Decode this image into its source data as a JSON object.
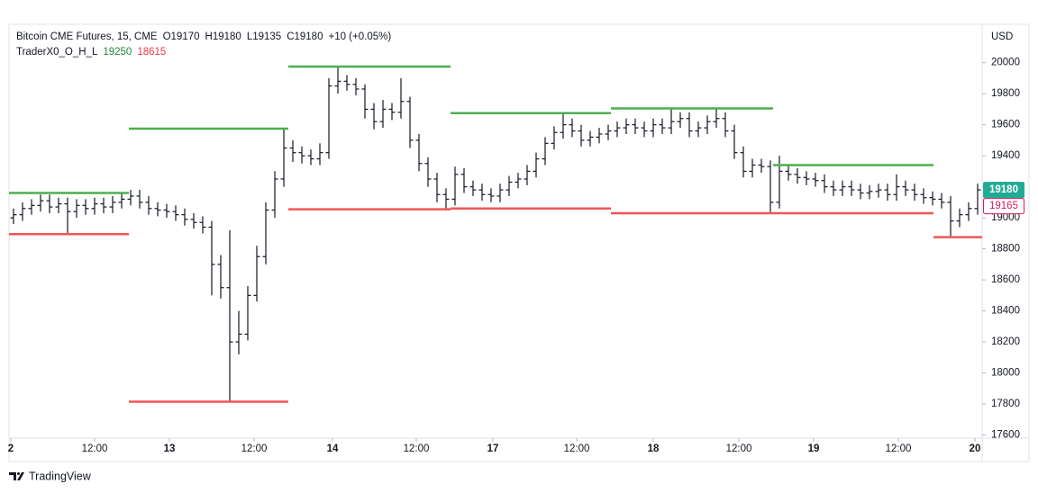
{
  "chart_data": {
    "type": "ohlc",
    "title": "Bitcoin CME Futures, 15, CME",
    "quote": [
      "O19170",
      "H19180",
      "L19135",
      "C19180",
      "+10 (+0.05%)"
    ],
    "indicator_name": "TraderX0_O_H_L",
    "indicator_values": [
      19250,
      18615
    ],
    "indicator_colors": [
      "#1e8a3a",
      "#f23645"
    ],
    "y_unit": "USD",
    "brand": "TradingView",
    "bar_color": "#131722",
    "high_color": "#4caf50",
    "low_color": "#f05656",
    "last_price": 19180,
    "last_price_color": "#22ab94",
    "marker_price": 19165,
    "marker_color": "#d81b60",
    "xlim": [
      0,
      108
    ],
    "xticks": [
      {
        "value": 0.2,
        "label": "2"
      },
      {
        "value": 9.5,
        "label": "12:00"
      },
      {
        "value": 17.8,
        "label": "13"
      },
      {
        "value": 27.2,
        "label": "12:00"
      },
      {
        "value": 35.9,
        "label": "14"
      },
      {
        "value": 45.2,
        "label": "12:00"
      },
      {
        "value": 53.7,
        "label": "17"
      },
      {
        "value": 63,
        "label": "12:00"
      },
      {
        "value": 71.5,
        "label": "18"
      },
      {
        "value": 81,
        "label": "12:00"
      },
      {
        "value": 89.3,
        "label": "19"
      },
      {
        "value": 98.7,
        "label": "12:00"
      },
      {
        "value": 107.2,
        "label": "20"
      }
    ],
    "ylim": [
      17580,
      20230
    ],
    "yticks": [
      17600,
      17800,
      18000,
      18200,
      18400,
      18600,
      18800,
      19000,
      19200,
      19400,
      19600,
      19800,
      20000
    ],
    "levels": [
      {
        "start": 0,
        "end": 13.3,
        "high": 19160,
        "low": 18895
      },
      {
        "start": 13.3,
        "end": 31,
        "high": 19575,
        "low": 17815
      },
      {
        "start": 31,
        "end": 49,
        "high": 19975,
        "low": 19055
      },
      {
        "start": 49,
        "end": 66.8,
        "high": 19675,
        "low": 19060
      },
      {
        "start": 66.8,
        "end": 84.8,
        "high": 19705,
        "low": 19030
      },
      {
        "start": 84.8,
        "end": 102.6,
        "high": 19340,
        "low": 19030
      },
      {
        "start": 102.6,
        "end": 108,
        "high": null,
        "low": 18875
      }
    ],
    "open": [
      19000,
      19020,
      19060,
      19080,
      19110,
      19070,
      19090,
      19040,
      19080,
      19060,
      19090,
      19070,
      19100,
      19120,
      19140,
      19100,
      19060,
      19050,
      19040,
      19020,
      18990,
      18970,
      18940,
      18700,
      18550,
      18200,
      18250,
      18500,
      18750,
      19050,
      19250,
      19450,
      19420,
      19400,
      19380,
      19420,
      19850,
      19880,
      19860,
      19830,
      19700,
      19620,
      19700,
      19680,
      19750,
      19500,
      19350,
      19250,
      19150,
      19120,
      19280,
      19200,
      19180,
      19150,
      19140,
      19180,
      19230,
      19250,
      19300,
      19380,
      19480,
      19550,
      19600,
      19560,
      19500,
      19520,
      19540,
      19560,
      19580,
      19600,
      19580,
      19560,
      19600,
      19580,
      19620,
      19640,
      19560,
      19580,
      19620,
      19640,
      19560,
      19420,
      19300,
      19340,
      19330,
      19100,
      19300,
      19280,
      19260,
      19250,
      19240,
      19200,
      19180,
      19200,
      19180,
      19160,
      19170,
      19180,
      19150,
      19200,
      19180,
      19150,
      19130,
      19120,
      19100,
      18980,
      19020,
      19060
    ],
    "high": [
      19060,
      19100,
      19120,
      19150,
      19150,
      19130,
      19130,
      19120,
      19120,
      19130,
      19130,
      19140,
      19160,
      19180,
      19180,
      19140,
      19100,
      19090,
      19080,
      19060,
      19030,
      19010,
      18980,
      18760,
      18920,
      18400,
      18560,
      18820,
      19100,
      19300,
      19575,
      19500,
      19460,
      19440,
      19480,
      19900,
      19975,
      19920,
      19900,
      19860,
      19740,
      19760,
      19740,
      19900,
      19780,
      19540,
      19390,
      19290,
      19190,
      19330,
      19320,
      19240,
      19220,
      19190,
      19220,
      19270,
      19290,
      19340,
      19420,
      19520,
      19590,
      19675,
      19640,
      19600,
      19560,
      19580,
      19600,
      19620,
      19640,
      19640,
      19620,
      19640,
      19640,
      19705,
      19680,
      19680,
      19620,
      19660,
      19705,
      19680,
      19600,
      19460,
      19380,
      19380,
      19370,
      19400,
      19340,
      19320,
      19300,
      19290,
      19280,
      19240,
      19240,
      19240,
      19220,
      19210,
      19220,
      19220,
      19280,
      19240,
      19220,
      19190,
      19170,
      19160,
      19140,
      19060,
      19100,
      19220
    ],
    "low": [
      18960,
      18980,
      19020,
      19040,
      19030,
      19030,
      18895,
      19000,
      19020,
      19020,
      19030,
      19030,
      19060,
      19080,
      19060,
      19020,
      19010,
      19000,
      18980,
      18950,
      18930,
      18900,
      18500,
      18480,
      17815,
      18120,
      18210,
      18460,
      18700,
      19000,
      19200,
      19360,
      19350,
      19340,
      19340,
      19380,
      19800,
      19820,
      19790,
      19640,
      19570,
      19580,
      19630,
      19640,
      19450,
      19300,
      19200,
      19100,
      19055,
      19080,
      19160,
      19140,
      19110,
      19100,
      19100,
      19140,
      19190,
      19210,
      19260,
      19340,
      19440,
      19510,
      19520,
      19460,
      19460,
      19480,
      19500,
      19520,
      19540,
      19540,
      19520,
      19520,
      19540,
      19540,
      19580,
      19520,
      19520,
      19540,
      19580,
      19520,
      19380,
      19260,
      19260,
      19290,
      19030,
      19060,
      19240,
      19220,
      19210,
      19200,
      19160,
      19140,
      19140,
      19140,
      19120,
      19120,
      19130,
      19110,
      19110,
      19140,
      19110,
      19090,
      19080,
      19060,
      18875,
      18940,
      18980,
      19020
    ],
    "close": [
      19020,
      19060,
      19080,
      19110,
      19070,
      19090,
      19040,
      19080,
      19060,
      19090,
      19070,
      19100,
      19120,
      19140,
      19100,
      19060,
      19050,
      19040,
      19020,
      18990,
      18970,
      18940,
      18700,
      18550,
      18200,
      18250,
      18500,
      18750,
      19050,
      19250,
      19450,
      19420,
      19400,
      19380,
      19420,
      19850,
      19880,
      19860,
      19830,
      19700,
      19620,
      19700,
      19680,
      19750,
      19500,
      19350,
      19250,
      19150,
      19120,
      19280,
      19200,
      19180,
      19150,
      19140,
      19180,
      19230,
      19250,
      19300,
      19380,
      19480,
      19550,
      19600,
      19560,
      19500,
      19520,
      19540,
      19560,
      19580,
      19600,
      19580,
      19560,
      19600,
      19580,
      19620,
      19640,
      19560,
      19580,
      19620,
      19640,
      19560,
      19420,
      19300,
      19340,
      19330,
      19100,
      19300,
      19280,
      19260,
      19250,
      19240,
      19200,
      19180,
      19200,
      19180,
      19160,
      19170,
      19180,
      19150,
      19200,
      19180,
      19150,
      19130,
      19120,
      19100,
      18980,
      19020,
      19060,
      19180
    ]
  }
}
